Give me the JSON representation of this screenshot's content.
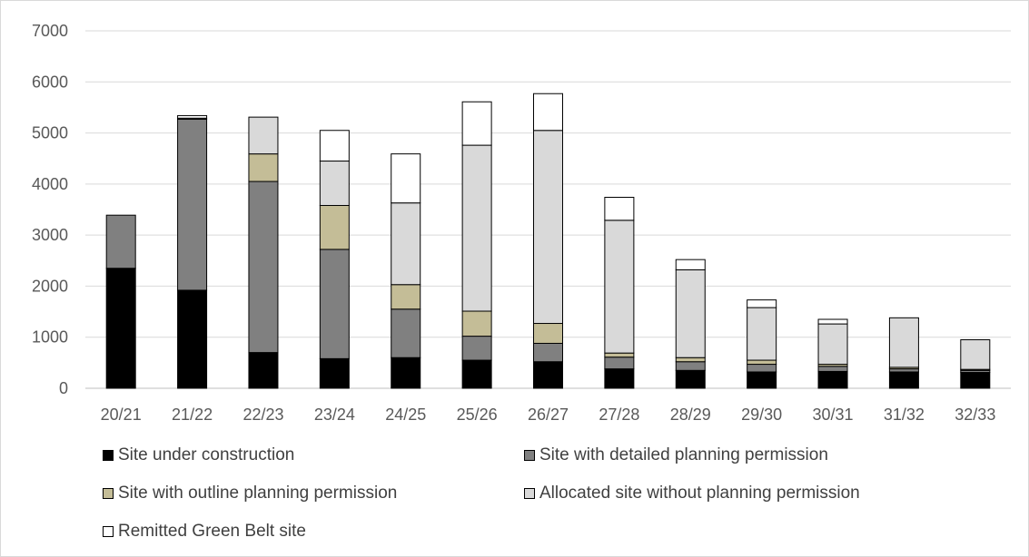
{
  "chart_data": {
    "type": "bar",
    "stacked": true,
    "categories": [
      "20/21",
      "21/22",
      "22/23",
      "23/24",
      "24/25",
      "25/26",
      "26/27",
      "27/28",
      "28/29",
      "29/30",
      "30/31",
      "31/32",
      "32/33"
    ],
    "ylim": [
      0,
      7000
    ],
    "yticks": [
      0,
      1000,
      2000,
      3000,
      4000,
      5000,
      6000,
      7000
    ],
    "grid": true,
    "legend_position": "bottom",
    "series": [
      {
        "name": "Site under construction",
        "color": "#000000",
        "values": [
          2350,
          1920,
          700,
          580,
          600,
          550,
          520,
          380,
          350,
          320,
          330,
          320,
          310
        ]
      },
      {
        "name": "Site with detailed planning permission",
        "color": "#808080",
        "values": [
          1040,
          3350,
          3350,
          2140,
          950,
          470,
          360,
          230,
          170,
          150,
          100,
          60,
          40
        ]
      },
      {
        "name": "Site with outline planning permission",
        "color": "#c4bd97",
        "values": [
          0,
          0,
          540,
          860,
          480,
          490,
          390,
          80,
          80,
          80,
          40,
          30,
          20
        ]
      },
      {
        "name": "Allocated site without planning permission",
        "color": "#d9d9d9",
        "values": [
          0,
          20,
          720,
          870,
          1600,
          3250,
          3780,
          2600,
          1720,
          1030,
          790,
          970,
          580
        ]
      },
      {
        "name": "Remitted Green Belt site",
        "color": "#ffffff",
        "values": [
          0,
          50,
          0,
          600,
          960,
          850,
          720,
          450,
          200,
          150,
          90,
          0,
          0
        ]
      }
    ]
  }
}
